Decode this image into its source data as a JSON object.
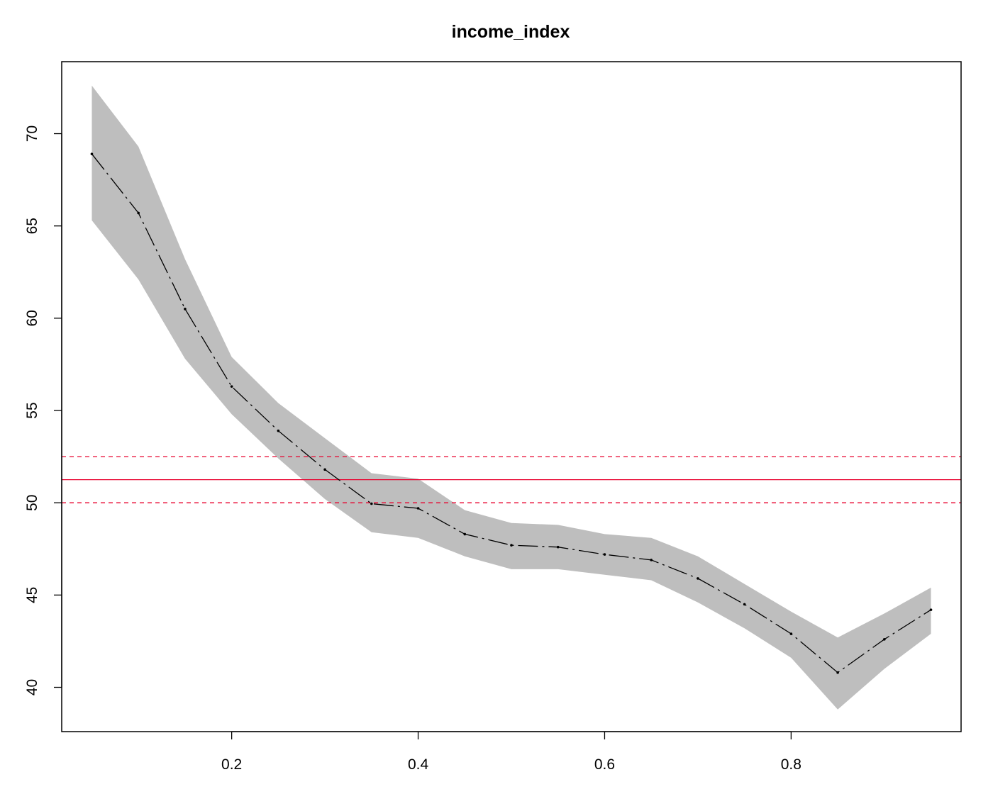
{
  "chart_data": {
    "type": "line",
    "title": "income_index",
    "xlabel": "",
    "ylabel": "",
    "xlim": [
      0.0177,
      0.9823
    ],
    "ylim": [
      37.6,
      73.9
    ],
    "x_ticks": [
      0.2,
      0.4,
      0.6,
      0.8
    ],
    "x_tick_labels": [
      "0.2",
      "0.4",
      "0.6",
      "0.8"
    ],
    "y_ticks": [
      40,
      45,
      50,
      55,
      60,
      65,
      70
    ],
    "y_tick_labels": [
      "40",
      "45",
      "50",
      "55",
      "60",
      "65",
      "70"
    ],
    "grid": false,
    "legend": "none",
    "x": [
      0.05,
      0.1,
      0.15,
      0.2,
      0.25,
      0.3,
      0.35,
      0.4,
      0.45,
      0.5,
      0.55,
      0.6,
      0.65,
      0.7,
      0.75,
      0.8,
      0.85,
      0.9,
      0.95
    ],
    "series": [
      {
        "role": "estimate",
        "values": [
          68.9,
          65.7,
          60.5,
          56.3,
          53.9,
          51.8,
          49.95,
          49.7,
          48.3,
          47.7,
          47.6,
          47.2,
          46.9,
          45.9,
          44.5,
          42.9,
          40.8,
          42.6,
          44.2
        ],
        "style": "dash-dot",
        "color": "#000000"
      }
    ],
    "band": {
      "lower": [
        65.3,
        62.1,
        57.8,
        54.8,
        52.4,
        50.2,
        48.4,
        48.1,
        47.1,
        46.4,
        46.4,
        46.1,
        45.8,
        44.6,
        43.2,
        41.6,
        38.8,
        41.0,
        42.9
      ],
      "upper": [
        72.6,
        69.3,
        63.2,
        57.9,
        55.4,
        53.5,
        51.6,
        51.3,
        49.6,
        48.9,
        48.8,
        48.3,
        48.1,
        47.1,
        45.6,
        44.1,
        42.7,
        44.0,
        45.4
      ],
      "color": "#bebebe"
    },
    "reference_lines": [
      {
        "y": 51.25,
        "style": "solid",
        "color": "#e8002d"
      },
      {
        "y": 52.5,
        "style": "dashed",
        "color": "#e8002d"
      },
      {
        "y": 50.0,
        "style": "dashed",
        "color": "#e8002d"
      }
    ]
  }
}
